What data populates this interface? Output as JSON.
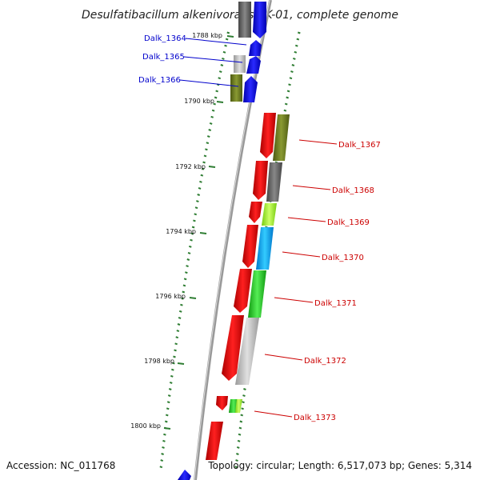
{
  "header": {
    "title": "Desulfatibacillum alkenivorans AK-01, complete genome"
  },
  "footer": {
    "accession": "Accession: NC_011768",
    "summary": "Topology: circular; Length: 6,517,073 bp; Genes: 5,314"
  },
  "position_labels": [
    "1788 kbp",
    "1790 kbp",
    "1792 kbp",
    "1794 kbp",
    "1796 kbp",
    "1798 kbp",
    "1800 kbp"
  ],
  "colors": {
    "reverse_label": "#0000cc",
    "forward_label": "#cc0000",
    "backbone": "#888888",
    "tick": "#2e7d32"
  },
  "genes": [
    {
      "id": "Dalk_1364",
      "label": "Dalk_1364",
      "strand": "reverse",
      "color": "#1010ff",
      "cog_color": "#777777"
    },
    {
      "id": "Dalk_1365",
      "label": "Dalk_1365",
      "strand": "reverse",
      "color": "#1010ff",
      "cog_color": "#c0c0c0"
    },
    {
      "id": "Dalk_1366",
      "label": "Dalk_1366",
      "strand": "reverse",
      "color": "#1010ff",
      "cog_color": "#6b7a22"
    },
    {
      "id": "Dalk_1367",
      "label": "Dalk_1367",
      "strand": "forward",
      "color": "#ee0000",
      "cog_color": "#6b7a22"
    },
    {
      "id": "Dalk_1368",
      "label": "Dalk_1368",
      "strand": "forward",
      "color": "#ee0000",
      "cog_color": "#666666"
    },
    {
      "id": "Dalk_1369",
      "label": "Dalk_1369",
      "strand": "forward",
      "color": "#ee0000",
      "cog_color": "#aaff33"
    },
    {
      "id": "Dalk_1370",
      "label": "Dalk_1370",
      "strand": "forward",
      "color": "#ee0000",
      "cog_color": "#11aaff"
    },
    {
      "id": "Dalk_1371",
      "label": "Dalk_1371",
      "strand": "forward",
      "color": "#ee0000",
      "cog_color": "#33cc33"
    },
    {
      "id": "Dalk_1372",
      "label": "Dalk_1372",
      "strand": "forward",
      "color": "#ee0000",
      "cog_color": "#bbbbbb"
    },
    {
      "id": "Dalk_1373",
      "label": "Dalk_1373",
      "strand": "forward",
      "color": "#ee0000",
      "cog_color": "#33cc33"
    }
  ]
}
